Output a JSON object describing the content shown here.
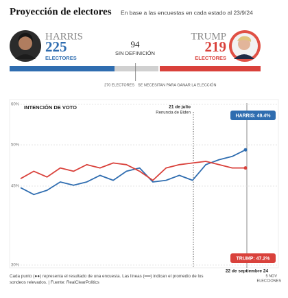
{
  "header": {
    "title": "Proyección de electores",
    "subtitle": "En base a las encuestas en cada estado al 23/9/24"
  },
  "electoral": {
    "harris": {
      "name": "HARRIS",
      "votes": 225,
      "unit": "ELECTORES",
      "color": "#2f6db0"
    },
    "undecided": {
      "votes": 94,
      "label": "SIN DEFINICIÓN",
      "color": "#d0d0d0"
    },
    "trump": {
      "name": "TRUMP",
      "votes": 219,
      "unit": "ELECTORES",
      "color": "#d9413b"
    },
    "threshold": 270,
    "threshold_label": "270 ELECTORES",
    "threshold_note": "SE NECESITAN PARA GANAR LA ELECCIÓN"
  },
  "chart_data": {
    "type": "line",
    "title": "INTENCIÓN DE VOTO",
    "series": [
      {
        "name": "HARRIS",
        "color": "#2f6db0",
        "end_label": "HARRIS: 49.4%",
        "values": [
          44.7,
          43.4,
          44.2,
          45.5,
          45.1,
          45.5,
          46.3,
          45.7,
          46.8,
          47.2,
          45.5,
          45.7,
          46.3,
          45.7,
          47.6,
          48.2,
          48.6,
          49.4
        ]
      },
      {
        "name": "TRUMP",
        "color": "#d9413b",
        "end_label": "TRUMP: 47.2%",
        "values": [
          45.9,
          46.8,
          46.1,
          47.2,
          46.8,
          47.6,
          47.2,
          47.8,
          47.6,
          46.8,
          45.7,
          47.2,
          47.6,
          47.8,
          48.0,
          47.6,
          47.2,
          47.2
        ]
      }
    ],
    "yticks": [
      {
        "value": 60,
        "label": "60%"
      },
      {
        "value": 50,
        "label": "50%"
      },
      {
        "value": 45,
        "label": "45%"
      },
      {
        "value": 30,
        "label": "30%"
      }
    ],
    "grid": true,
    "annotations": {
      "event_date": "21 de julio",
      "event": "Renuncia de Biden",
      "current": "22 de septiembre 24",
      "election_date": "5 NOV",
      "election": "ELECCIONES"
    },
    "note": "Cada punto (●●) representa el resultado de una encuesta. Las líneas (══) indican el promedio de los sondeos relevados. | Fuente: RealClearPolitics"
  }
}
